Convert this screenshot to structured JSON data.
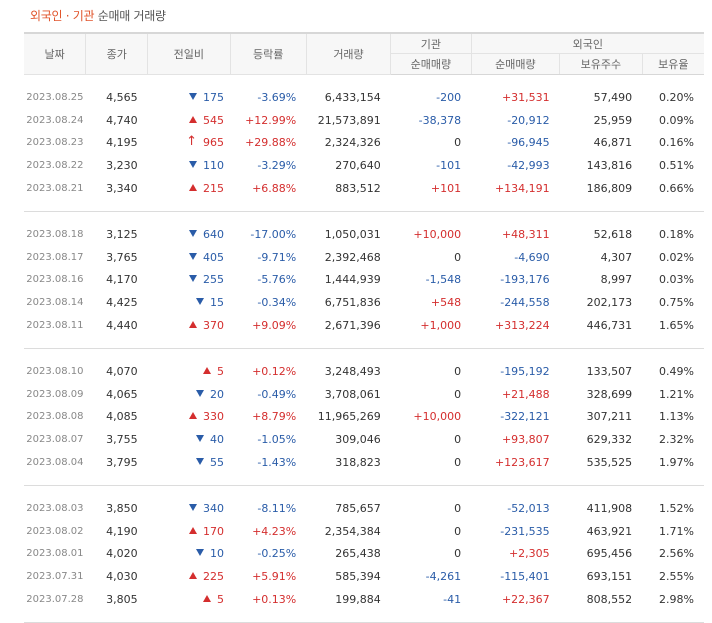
{
  "title": {
    "part1": "외국인 · 기관",
    "part2": "순매매 거래량"
  },
  "headers": {
    "date": "날짜",
    "close": "종가",
    "change": "전일비",
    "rate": "등락률",
    "volume": "거래량",
    "inst": "기관",
    "foreign": "외국인",
    "inst_net": "순매매량",
    "foreign_net": "순매매량",
    "foreign_hold": "보유주수",
    "foreign_ratio": "보유율"
  },
  "colors": {
    "up": "#d42e2e",
    "down": "#2a5ca8",
    "accent": "#e0542b"
  },
  "groups": [
    [
      {
        "date": "2023.08.25",
        "close": "4,565",
        "dir": "down",
        "change": "175",
        "rate": "-3.69%",
        "volume": "6,433,154",
        "inst": "-200",
        "foreign": "+31,531",
        "hold": "57,490",
        "ratio": "0.20%"
      },
      {
        "date": "2023.08.24",
        "close": "4,740",
        "dir": "up",
        "change": "545",
        "rate": "+12.99%",
        "volume": "21,573,891",
        "inst": "-38,378",
        "foreign": "-20,912",
        "hold": "25,959",
        "ratio": "0.09%"
      },
      {
        "date": "2023.08.23",
        "close": "4,195",
        "dir": "limit",
        "change": "965",
        "rate": "+29.88%",
        "volume": "2,324,326",
        "inst": "0",
        "foreign": "-96,945",
        "hold": "46,871",
        "ratio": "0.16%"
      },
      {
        "date": "2023.08.22",
        "close": "3,230",
        "dir": "down",
        "change": "110",
        "rate": "-3.29%",
        "volume": "270,640",
        "inst": "-101",
        "foreign": "-42,993",
        "hold": "143,816",
        "ratio": "0.51%"
      },
      {
        "date": "2023.08.21",
        "close": "3,340",
        "dir": "up",
        "change": "215",
        "rate": "+6.88%",
        "volume": "883,512",
        "inst": "+101",
        "foreign": "+134,191",
        "hold": "186,809",
        "ratio": "0.66%"
      }
    ],
    [
      {
        "date": "2023.08.18",
        "close": "3,125",
        "dir": "down",
        "change": "640",
        "rate": "-17.00%",
        "volume": "1,050,031",
        "inst": "+10,000",
        "foreign": "+48,311",
        "hold": "52,618",
        "ratio": "0.18%"
      },
      {
        "date": "2023.08.17",
        "close": "3,765",
        "dir": "down",
        "change": "405",
        "rate": "-9.71%",
        "volume": "2,392,468",
        "inst": "0",
        "foreign": "-4,690",
        "hold": "4,307",
        "ratio": "0.02%"
      },
      {
        "date": "2023.08.16",
        "close": "4,170",
        "dir": "down",
        "change": "255",
        "rate": "-5.76%",
        "volume": "1,444,939",
        "inst": "-1,548",
        "foreign": "-193,176",
        "hold": "8,997",
        "ratio": "0.03%"
      },
      {
        "date": "2023.08.14",
        "close": "4,425",
        "dir": "down",
        "change": "15",
        "rate": "-0.34%",
        "volume": "6,751,836",
        "inst": "+548",
        "foreign": "-244,558",
        "hold": "202,173",
        "ratio": "0.75%"
      },
      {
        "date": "2023.08.11",
        "close": "4,440",
        "dir": "up",
        "change": "370",
        "rate": "+9.09%",
        "volume": "2,671,396",
        "inst": "+1,000",
        "foreign": "+313,224",
        "hold": "446,731",
        "ratio": "1.65%"
      }
    ],
    [
      {
        "date": "2023.08.10",
        "close": "4,070",
        "dir": "up",
        "change": "5",
        "rate": "+0.12%",
        "volume": "3,248,493",
        "inst": "0",
        "foreign": "-195,192",
        "hold": "133,507",
        "ratio": "0.49%"
      },
      {
        "date": "2023.08.09",
        "close": "4,065",
        "dir": "down",
        "change": "20",
        "rate": "-0.49%",
        "volume": "3,708,061",
        "inst": "0",
        "foreign": "+21,488",
        "hold": "328,699",
        "ratio": "1.21%"
      },
      {
        "date": "2023.08.08",
        "close": "4,085",
        "dir": "up",
        "change": "330",
        "rate": "+8.79%",
        "volume": "11,965,269",
        "inst": "+10,000",
        "foreign": "-322,121",
        "hold": "307,211",
        "ratio": "1.13%"
      },
      {
        "date": "2023.08.07",
        "close": "3,755",
        "dir": "down",
        "change": "40",
        "rate": "-1.05%",
        "volume": "309,046",
        "inst": "0",
        "foreign": "+93,807",
        "hold": "629,332",
        "ratio": "2.32%"
      },
      {
        "date": "2023.08.04",
        "close": "3,795",
        "dir": "down",
        "change": "55",
        "rate": "-1.43%",
        "volume": "318,823",
        "inst": "0",
        "foreign": "+123,617",
        "hold": "535,525",
        "ratio": "1.97%"
      }
    ],
    [
      {
        "date": "2023.08.03",
        "close": "3,850",
        "dir": "down",
        "change": "340",
        "rate": "-8.11%",
        "volume": "785,657",
        "inst": "0",
        "foreign": "-52,013",
        "hold": "411,908",
        "ratio": "1.52%"
      },
      {
        "date": "2023.08.02",
        "close": "4,190",
        "dir": "up",
        "change": "170",
        "rate": "+4.23%",
        "volume": "2,354,384",
        "inst": "0",
        "foreign": "-231,535",
        "hold": "463,921",
        "ratio": "1.71%"
      },
      {
        "date": "2023.08.01",
        "close": "4,020",
        "dir": "down",
        "change": "10",
        "rate": "-0.25%",
        "volume": "265,438",
        "inst": "0",
        "foreign": "+2,305",
        "hold": "695,456",
        "ratio": "2.56%"
      },
      {
        "date": "2023.07.31",
        "close": "4,030",
        "dir": "up",
        "change": "225",
        "rate": "+5.91%",
        "volume": "585,394",
        "inst": "-4,261",
        "foreign": "-115,401",
        "hold": "693,151",
        "ratio": "2.55%"
      },
      {
        "date": "2023.07.28",
        "close": "3,805",
        "dir": "up",
        "change": "5",
        "rate": "+0.13%",
        "volume": "199,884",
        "inst": "-41",
        "foreign": "+22,367",
        "hold": "808,552",
        "ratio": "2.98%"
      }
    ]
  ]
}
